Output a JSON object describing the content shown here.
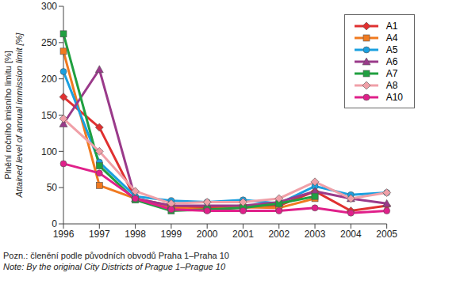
{
  "chart_data": {
    "type": "line",
    "ylabel": [
      "Plnění ročního imisního limitu [%]",
      "Attained level of annual immission limit [%]"
    ],
    "notes": [
      "Pozn.: členění podle původních obvodů Praha 1–Praha 10",
      "Note: By the original City Districts of Prague 1–Prague 10"
    ],
    "categories": [
      "1996",
      "1997",
      "1998",
      "1999",
      "2000",
      "2001",
      "2002",
      "2003",
      "2004",
      "2005"
    ],
    "ylim": [
      0,
      300
    ],
    "yticks": [
      0,
      50,
      100,
      150,
      200,
      250,
      300
    ],
    "grid": false,
    "legend": "upper right",
    "series": [
      {
        "name": "A1",
        "color": "#e03030",
        "marker": "diamond",
        "values": [
          175,
          133,
          35,
          25,
          22,
          25,
          25,
          45,
          18,
          25
        ]
      },
      {
        "name": "A4",
        "color": "#f07a20",
        "marker": "square",
        "values": [
          238,
          53,
          35,
          22,
          20,
          23,
          22,
          35,
          null,
          null
        ]
      },
      {
        "name": "A5",
        "color": "#1aa0e0",
        "marker": "circle",
        "values": [
          210,
          85,
          38,
          32,
          30,
          33,
          28,
          52,
          40,
          43
        ]
      },
      {
        "name": "A6",
        "color": "#9a3a8a",
        "marker": "triangle",
        "values": [
          138,
          213,
          35,
          25,
          25,
          25,
          30,
          45,
          35,
          28
        ]
      },
      {
        "name": "A7",
        "color": "#20a040",
        "marker": "square",
        "values": [
          262,
          80,
          33,
          18,
          20,
          22,
          28,
          38,
          null,
          null
        ]
      },
      {
        "name": "A8",
        "color": "#f0a0a8",
        "marker": "diamond",
        "values": [
          145,
          100,
          45,
          28,
          30,
          30,
          35,
          58,
          35,
          43
        ]
      },
      {
        "name": "A10",
        "color": "#e0208a",
        "marker": "circle",
        "values": [
          83,
          70,
          35,
          20,
          18,
          18,
          18,
          22,
          15,
          18
        ]
      }
    ]
  }
}
